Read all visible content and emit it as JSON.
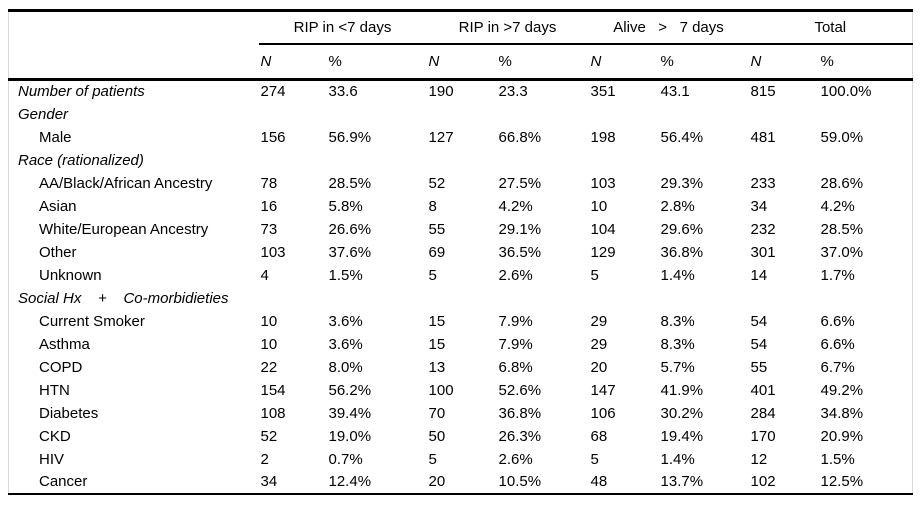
{
  "chart_data": {
    "type": "table",
    "column_groups": [
      {
        "label": "RIP in <7 days"
      },
      {
        "label": "RIP in >7 days"
      },
      {
        "label": "Alive   >   7 days"
      },
      {
        "label": "Total"
      }
    ],
    "subheaders": [
      "N",
      "%",
      "N",
      "%",
      "N",
      "%",
      "N",
      "%"
    ],
    "rows": [
      {
        "label": "Number of patients",
        "style": "summary",
        "values": [
          "274",
          "33.6",
          "190",
          "23.3",
          "351",
          "43.1",
          "815",
          "100.0%"
        ]
      },
      {
        "label": "Gender",
        "style": "section",
        "values": []
      },
      {
        "label": "Male",
        "style": "item",
        "values": [
          "156",
          "56.9%",
          "127",
          "66.8%",
          "198",
          "56.4%",
          "481",
          "59.0%"
        ]
      },
      {
        "label": "Race (rationalized)",
        "style": "section",
        "values": []
      },
      {
        "label": "AA/Black/African Ancestry",
        "style": "item",
        "values": [
          "78",
          "28.5%",
          "52",
          "27.5%",
          "103",
          "29.3%",
          "233",
          "28.6%"
        ]
      },
      {
        "label": "Asian",
        "style": "item",
        "values": [
          "16",
          "5.8%",
          "8",
          "4.2%",
          "10",
          "2.8%",
          "34",
          "4.2%"
        ]
      },
      {
        "label": "White/European Ancestry",
        "style": "item",
        "values": [
          "73",
          "26.6%",
          "55",
          "29.1%",
          "104",
          "29.6%",
          "232",
          "28.5%"
        ]
      },
      {
        "label": "Other",
        "style": "item",
        "values": [
          "103",
          "37.6%",
          "69",
          "36.5%",
          "129",
          "36.8%",
          "301",
          "37.0%"
        ]
      },
      {
        "label": "Unknown",
        "style": "item",
        "values": [
          "4",
          "1.5%",
          "5",
          "2.6%",
          "5",
          "1.4%",
          "14",
          "1.7%"
        ]
      },
      {
        "label": "Social Hx    +    Co-morbidieties",
        "style": "section",
        "values": []
      },
      {
        "label": "Current Smoker",
        "style": "item",
        "values": [
          "10",
          "3.6%",
          "15",
          "7.9%",
          "29",
          "8.3%",
          "54",
          "6.6%"
        ]
      },
      {
        "label": "Asthma",
        "style": "item",
        "values": [
          "10",
          "3.6%",
          "15",
          "7.9%",
          "29",
          "8.3%",
          "54",
          "6.6%"
        ]
      },
      {
        "label": "COPD",
        "style": "item",
        "values": [
          "22",
          "8.0%",
          "13",
          "6.8%",
          "20",
          "5.7%",
          "55",
          "6.7%"
        ]
      },
      {
        "label": "HTN",
        "style": "item",
        "values": [
          "154",
          "56.2%",
          "100",
          "52.6%",
          "147",
          "41.9%",
          "401",
          "49.2%"
        ]
      },
      {
        "label": "Diabetes",
        "style": "item",
        "values": [
          "108",
          "39.4%",
          "70",
          "36.8%",
          "106",
          "30.2%",
          "284",
          "34.8%"
        ]
      },
      {
        "label": "CKD",
        "style": "item",
        "values": [
          "52",
          "19.0%",
          "50",
          "26.3%",
          "68",
          "19.4%",
          "170",
          "20.9%"
        ]
      },
      {
        "label": "HIV",
        "style": "item",
        "values": [
          "2",
          "0.7%",
          "5",
          "2.6%",
          "5",
          "1.4%",
          "12",
          "1.5%"
        ]
      },
      {
        "label": "Cancer",
        "style": "item",
        "values": [
          "34",
          "12.4%",
          "20",
          "10.5%",
          "48",
          "13.7%",
          "102",
          "12.5%"
        ]
      }
    ]
  }
}
